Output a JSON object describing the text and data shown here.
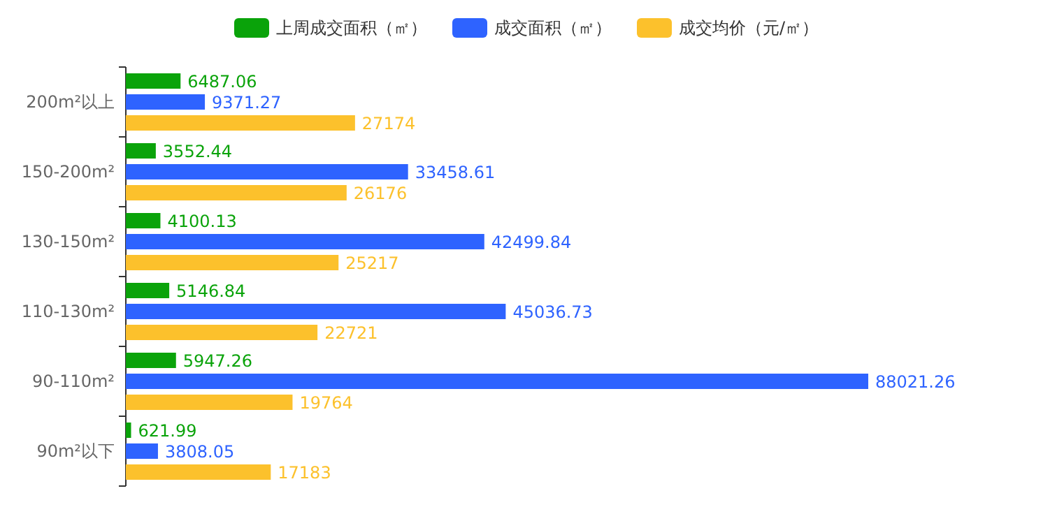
{
  "chart_data": {
    "type": "bar",
    "orientation": "horizontal",
    "categories": [
      "200m²以上",
      "150-200m²",
      "130-150m²",
      "110-130m²",
      "90-110m²",
      "90m²以下"
    ],
    "series": [
      {
        "name": "上周成交面积（㎡）",
        "color": "#0aa30a",
        "values": [
          6487.06,
          3552.44,
          4100.13,
          5146.84,
          5947.26,
          621.99
        ]
      },
      {
        "name": "成交面积（㎡）",
        "color": "#2e63ff",
        "values": [
          9371.27,
          33458.61,
          42499.84,
          45036.73,
          88021.26,
          3808.05
        ]
      },
      {
        "name": "成交均价（元/㎡）",
        "color": "#fcc12c",
        "values": [
          27174,
          26176,
          25217,
          22721,
          19764,
          17183
        ]
      }
    ],
    "data_labels": true,
    "legend": "top"
  }
}
